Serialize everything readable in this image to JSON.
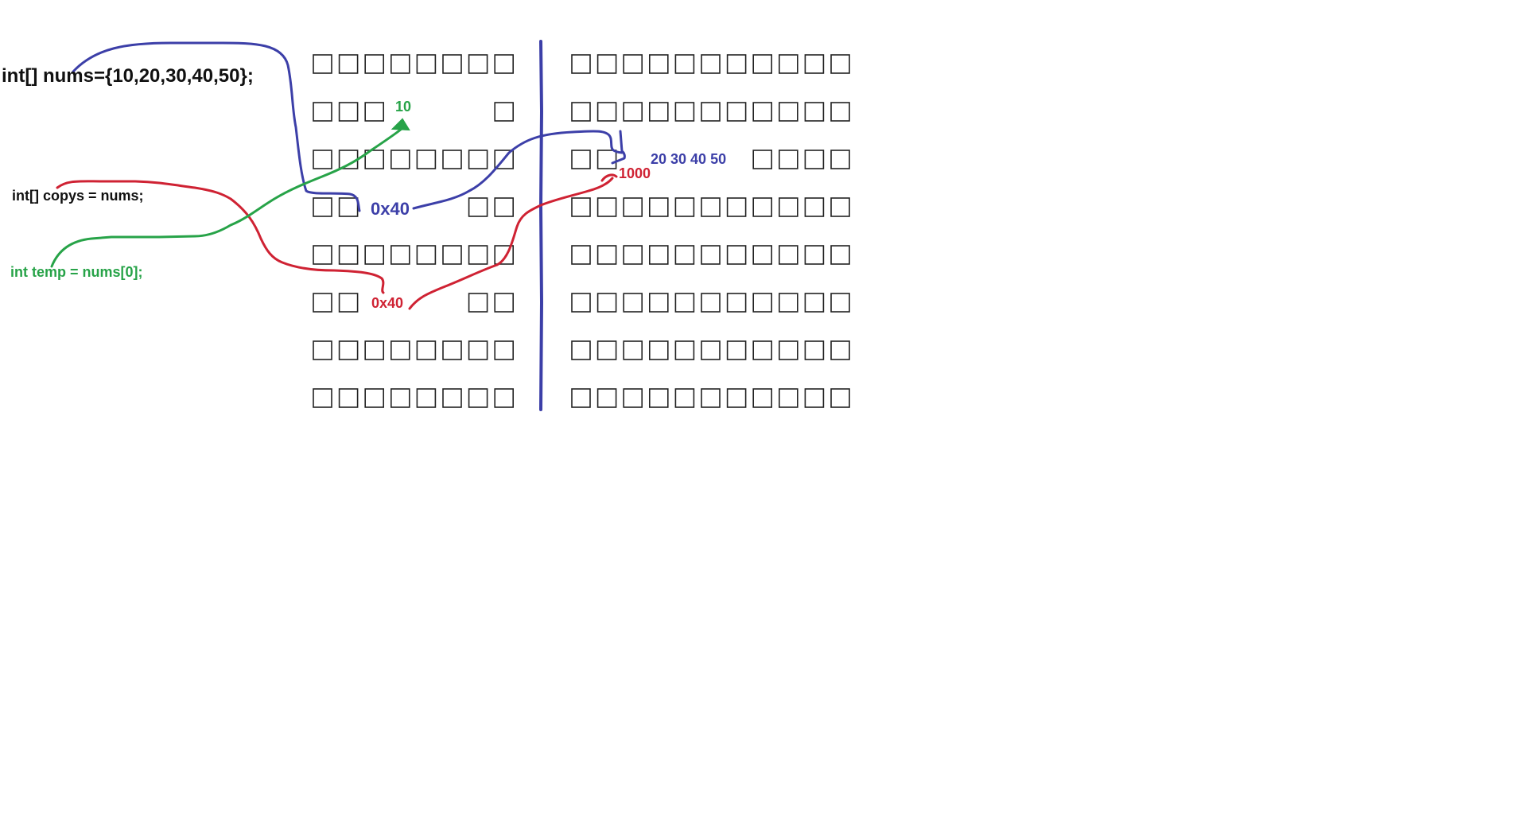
{
  "colors": {
    "background": "#ffffff",
    "cell_border": "#222222",
    "blue": "#3c3fa8",
    "red": "#cf2233",
    "green": "#27a348",
    "black": "#111111"
  },
  "code": {
    "nums_decl": "int[] nums={10,20,30,40,50};",
    "copys_decl": "int[] copys = nums;",
    "temp_decl": "int temp = nums[0];"
  },
  "values": {
    "stack_nums_address": "0x40",
    "stack_copys_address": "0x40",
    "temp_value": "10",
    "heap_array_values": "20 30 40 50",
    "heap_address": "1000"
  },
  "memory": {
    "stack_columns": 8,
    "heap_columns": 11,
    "rows": 8,
    "stack_blank_cells": [
      {
        "row": 1,
        "cols": [
          3,
          4,
          5,
          6
        ]
      },
      {
        "row": 3,
        "cols": [
          2,
          3,
          4,
          5
        ]
      },
      {
        "row": 5,
        "cols": [
          2,
          3,
          4,
          5
        ]
      }
    ],
    "heap_blank_cells": [
      {
        "row": 2,
        "cols": [
          2,
          3,
          4,
          5,
          6
        ]
      }
    ]
  }
}
